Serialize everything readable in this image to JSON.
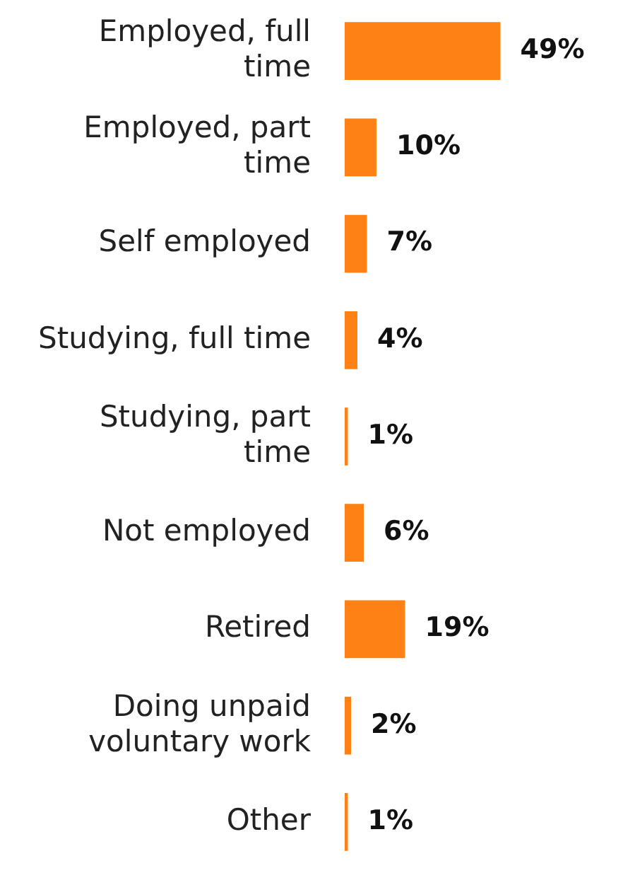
{
  "chart_data": {
    "type": "bar",
    "orientation": "horizontal",
    "categories": [
      "Employed, full time",
      "Employed, part time",
      "Self employed",
      "Studying, full time",
      "Studying, part time",
      "Not employed",
      "Retired",
      "Doing unpaid voluntary work",
      "Other"
    ],
    "values": [
      49,
      10,
      7,
      4,
      1,
      6,
      19,
      2,
      1
    ],
    "value_labels": [
      "49%",
      "10%",
      "7%",
      "4%",
      "1%",
      "6%",
      "19%",
      "2%",
      "1%"
    ],
    "color": "#fe8116"
  }
}
